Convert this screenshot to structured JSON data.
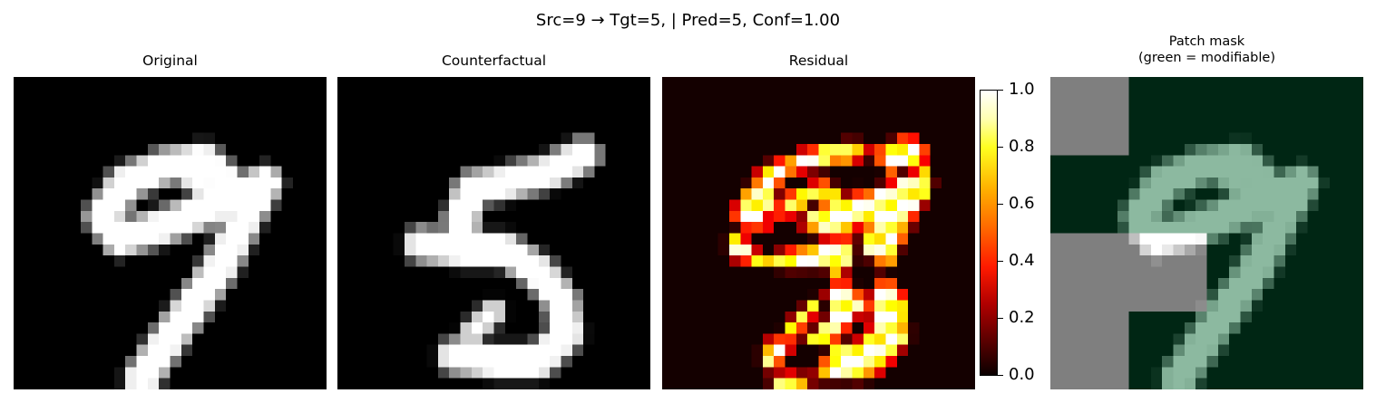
{
  "figure_title": "Src=9 → Tgt=5, | Pred=5, Conf=1.00",
  "panels": [
    {
      "title": "Original"
    },
    {
      "title": "Counterfactual"
    },
    {
      "title": "Residual"
    },
    {
      "title_line1": "Patch mask",
      "title_line2": "(green = modifiable)"
    }
  ],
  "colorbar": {
    "colormap": "hot",
    "ticks": [
      "0.0",
      "0.2",
      "0.4",
      "0.6",
      "0.8",
      "1.0"
    ]
  },
  "colors": {
    "mask_green": "#002614",
    "mask_gray": "#7f7f7f",
    "background": "#ffffff"
  }
}
